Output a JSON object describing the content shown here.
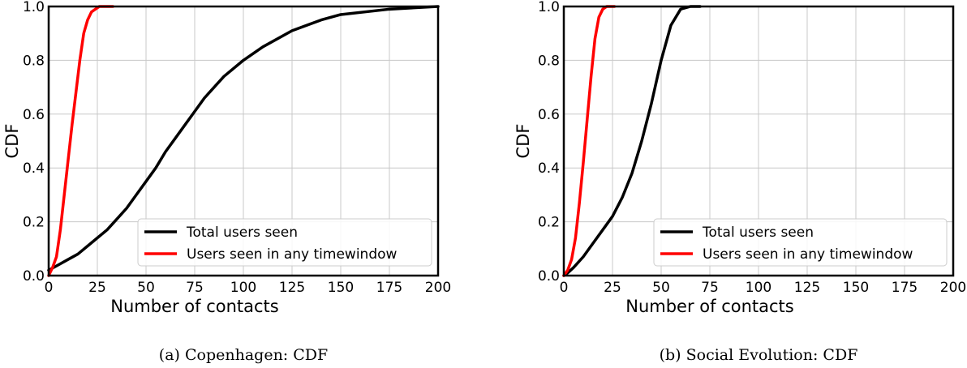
{
  "colors": {
    "total": "#000000",
    "window": "#ff0000",
    "grid": "#c8c8c8"
  },
  "chart_data": [
    {
      "type": "line",
      "caption": "(a) Copenhagen: CDF",
      "xlabel": "Number of contacts",
      "ylabel": "CDF",
      "xlim": [
        0,
        200
      ],
      "ylim": [
        0,
        1
      ],
      "xticks": [
        0,
        25,
        50,
        75,
        100,
        125,
        150,
        175,
        200
      ],
      "yticks": [
        0.0,
        0.2,
        0.4,
        0.6,
        0.8,
        1.0
      ],
      "xtick_labels": [
        "0",
        "25",
        "50",
        "75",
        "100",
        "125",
        "150",
        "175",
        "200"
      ],
      "ytick_labels": [
        "0.0",
        "0.2",
        "0.4",
        "0.6",
        "0.8",
        "1.0"
      ],
      "grid": true,
      "legend_position": "lower-right",
      "series": [
        {
          "name": "Total users seen",
          "color": "#000000",
          "x": [
            0,
            5,
            10,
            15,
            20,
            25,
            30,
            35,
            40,
            45,
            50,
            55,
            60,
            65,
            70,
            75,
            80,
            90,
            100,
            110,
            125,
            140,
            150,
            175,
            200
          ],
          "y": [
            0.02,
            0.04,
            0.06,
            0.08,
            0.11,
            0.14,
            0.17,
            0.21,
            0.25,
            0.3,
            0.35,
            0.4,
            0.46,
            0.51,
            0.56,
            0.61,
            0.66,
            0.74,
            0.8,
            0.85,
            0.91,
            0.95,
            0.97,
            0.99,
            1.0
          ]
        },
        {
          "name": "Users seen in any timewindow",
          "color": "#ff0000",
          "x": [
            0,
            2,
            4,
            6,
            8,
            10,
            12,
            14,
            16,
            18,
            20,
            22,
            24,
            26,
            30,
            33
          ],
          "y": [
            0.0,
            0.03,
            0.07,
            0.17,
            0.3,
            0.43,
            0.56,
            0.68,
            0.8,
            0.9,
            0.95,
            0.98,
            0.99,
            1.0,
            1.0,
            1.0
          ]
        }
      ]
    },
    {
      "type": "line",
      "caption": "(b) Social Evolution: CDF",
      "xlabel": "Number of contacts",
      "ylabel": "CDF",
      "xlim": [
        0,
        200
      ],
      "ylim": [
        0,
        1
      ],
      "xticks": [
        0,
        25,
        50,
        75,
        100,
        125,
        150,
        175,
        200
      ],
      "yticks": [
        0.0,
        0.2,
        0.4,
        0.6,
        0.8,
        1.0
      ],
      "xtick_labels": [
        "0",
        "25",
        "50",
        "75",
        "100",
        "125",
        "150",
        "175",
        "200"
      ],
      "ytick_labels": [
        "0.0",
        "0.2",
        "0.4",
        "0.6",
        "0.8",
        "1.0"
      ],
      "grid": true,
      "legend_position": "lower-right",
      "series": [
        {
          "name": "Total users seen",
          "color": "#000000",
          "x": [
            0,
            2,
            5,
            10,
            15,
            20,
            25,
            30,
            35,
            40,
            45,
            50,
            55,
            60,
            65,
            70
          ],
          "y": [
            0.0,
            0.01,
            0.03,
            0.07,
            0.12,
            0.17,
            0.22,
            0.29,
            0.38,
            0.5,
            0.64,
            0.8,
            0.93,
            0.99,
            1.0,
            1.0
          ]
        },
        {
          "name": "Users seen in any timewindow",
          "color": "#ff0000",
          "x": [
            0,
            2,
            4,
            6,
            8,
            10,
            12,
            14,
            16,
            18,
            20,
            22,
            24,
            26
          ],
          "y": [
            0.0,
            0.02,
            0.06,
            0.14,
            0.27,
            0.42,
            0.58,
            0.74,
            0.88,
            0.96,
            0.99,
            1.0,
            1.0,
            1.0
          ]
        }
      ]
    }
  ]
}
